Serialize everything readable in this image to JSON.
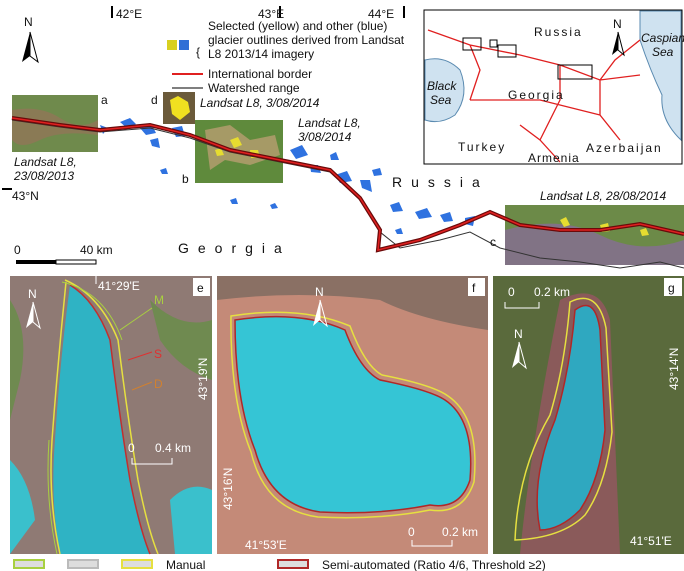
{
  "main_map": {
    "lon_labels": [
      "42°E",
      "43°E",
      "44°E"
    ],
    "lat_label": "43°N",
    "north": "N",
    "legend": {
      "glacier_outlines": [
        "Selected (yellow) and other (blue)",
        "glacier outlines derived from Landsat",
        "L8 2013/14 imagery"
      ],
      "border": "International border",
      "watershed": "Watershed range"
    },
    "insets": [
      {
        "label": "a",
        "caption": [
          "Landsat L8,",
          "23/08/2013"
        ]
      },
      {
        "label": "b",
        "caption": [
          "Landsat L8,",
          "3/08/2014"
        ]
      },
      {
        "label": "c",
        "caption": [
          "Landsat L8, 28/08/2014"
        ]
      },
      {
        "label": "d",
        "caption": [
          "Landsat L8, 3/08/2014"
        ]
      }
    ],
    "countries": [
      "Russia",
      "Georgia"
    ],
    "scale": [
      "0",
      "40 km"
    ]
  },
  "locator_map": {
    "north": "N",
    "countries": [
      "Russia",
      "Georgia",
      "Turkey",
      "Armenia",
      "Azerbaijan"
    ],
    "seas": [
      [
        "Black",
        "Sea"
      ],
      [
        "Caspian",
        "Sea"
      ]
    ]
  },
  "panels": [
    {
      "label": "e",
      "north": "N",
      "lon": "41°29'E",
      "lat": "43°19'N",
      "scale": [
        "0",
        "0.4 km"
      ],
      "outline_letters": [
        "M",
        "S",
        "D"
      ]
    },
    {
      "label": "f",
      "north": "N",
      "lon": "41°53'E",
      "lat": "43°16'N",
      "scale": [
        "0",
        "0.2 km"
      ]
    },
    {
      "label": "g",
      "north": "N",
      "lon": "41°51'E",
      "lat": "43°14'N",
      "scale": [
        "0",
        "0.2 km"
      ]
    }
  ],
  "legend": {
    "manual": "Manual",
    "semi_automated": "Semi-automated (Ratio 4/6, Threshold ≥2)"
  }
}
